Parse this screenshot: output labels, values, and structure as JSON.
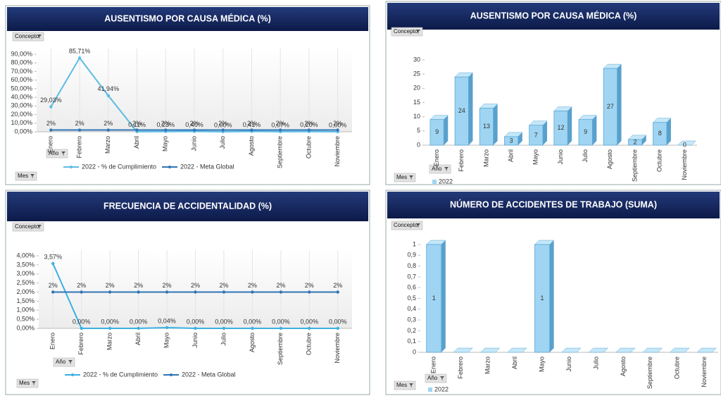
{
  "chart_data": [
    {
      "type": "line",
      "title": "AUSENTISMO POR CAUSA MÉDICA (%)",
      "filters": [
        "Concepto",
        "Año",
        "Mes"
      ],
      "categories": [
        "Enero",
        "Febrero",
        "Marzo",
        "Abril",
        "Mayo",
        "Junio",
        "Julio",
        "Agosto",
        "Septiembre",
        "Octubre",
        "Noviembre"
      ],
      "series": [
        {
          "name": "2022 - % de Cumplimiento",
          "color": "#5bbce4",
          "values": [
            29.03,
            85.71,
            41.94,
            0.11,
            0.23,
            0.4,
            0.0,
            0.41,
            0.07,
            0.2,
            0.0
          ],
          "value_labels": [
            "29,03%",
            "85,71%",
            "41,94%",
            "0,11%",
            "0,23%",
            "0,40%",
            "0,00%",
            "0,41%",
            "0,07%",
            "0,20%",
            "0,00%"
          ]
        },
        {
          "name": "2022 - Meta Global",
          "color": "#2e75b6",
          "values": [
            2,
            2,
            2,
            2,
            2,
            2,
            2,
            2,
            2,
            2,
            2
          ],
          "value_labels": [
            "2%",
            "2%",
            "2%",
            "2%",
            "2%",
            "2%",
            "2%",
            "2%",
            "2%",
            "2%",
            "2%"
          ]
        }
      ],
      "ylim": [
        0,
        90
      ],
      "yticks": [
        {
          "value": 0,
          "label": "0,00%"
        },
        {
          "value": 10,
          "label": "10,00%"
        },
        {
          "value": 20,
          "label": "20,00%"
        },
        {
          "value": 30,
          "label": "30,00%"
        },
        {
          "value": 40,
          "label": "40,00%"
        },
        {
          "value": 50,
          "label": "50,00%"
        },
        {
          "value": 60,
          "label": "60,00%"
        },
        {
          "value": 70,
          "label": "70,00%"
        },
        {
          "value": 80,
          "label": "80,00%"
        },
        {
          "value": 90,
          "label": "90,00%"
        }
      ]
    },
    {
      "type": "bar",
      "title": "AUSENTISMO POR CAUSA MÉDICA (%)",
      "filters": [
        "Concepto",
        "Año",
        "Mes"
      ],
      "categories": [
        "Enero",
        "Febrero",
        "Marzo",
        "Abril",
        "Mayo",
        "Junio",
        "Julio",
        "Agosto",
        "Septiembre",
        "Octubre",
        "Noviembre"
      ],
      "series": [
        {
          "name": "2022",
          "color": "#9fd5f2",
          "values": [
            9,
            24,
            13,
            3,
            7,
            12,
            9,
            27,
            2,
            8,
            0
          ]
        }
      ],
      "ylim": [
        0,
        30
      ],
      "yticks": [
        0,
        5,
        10,
        15,
        20,
        25,
        30
      ]
    },
    {
      "type": "line",
      "title": "FRECUENCIA DE ACCIDENTALIDAD (%)",
      "filters": [
        "Concepto",
        "Año",
        "Mes"
      ],
      "categories": [
        "Enero",
        "Febrero",
        "Marzo",
        "Abril",
        "Mayo",
        "Junio",
        "Julio",
        "Agosto",
        "Septiembre",
        "Octubre",
        "Noviembre"
      ],
      "series": [
        {
          "name": "2022 - % de Cumplimiento",
          "color": "#3cb0e0",
          "values": [
            3.57,
            0,
            0,
            0,
            0.04,
            0,
            0,
            0,
            0,
            0,
            0
          ],
          "value_labels": [
            "3,57%",
            "0,00%",
            "0,00%",
            "0,00%",
            "0,04%",
            "0,00%",
            "0,00%",
            "0,00%",
            "0,00%",
            "0,00%",
            "0,00%"
          ]
        },
        {
          "name": "2022 - Meta Global",
          "color": "#2e75b6",
          "values": [
            2,
            2,
            2,
            2,
            2,
            2,
            2,
            2,
            2,
            2,
            2
          ],
          "value_labels": [
            "2%",
            "2%",
            "2%",
            "2%",
            "2%",
            "2%",
            "2%",
            "2%",
            "2%",
            "2%",
            "2%"
          ]
        }
      ],
      "ylim": [
        0,
        4
      ],
      "yticks": [
        {
          "value": 0,
          "label": "0,00%"
        },
        {
          "value": 0.5,
          "label": "0,50%"
        },
        {
          "value": 1,
          "label": "1,00%"
        },
        {
          "value": 1.5,
          "label": "1,50%"
        },
        {
          "value": 2,
          "label": "2,00%"
        },
        {
          "value": 2.5,
          "label": "2,50%"
        },
        {
          "value": 3,
          "label": "3,00%"
        },
        {
          "value": 3.5,
          "label": "3,50%"
        },
        {
          "value": 4,
          "label": "4,00%"
        }
      ]
    },
    {
      "type": "bar",
      "title": "NÚMERO DE ACCIDENTES DE TRABAJO  (SUMA)",
      "filters": [
        "Concepto",
        "Año",
        "Mes"
      ],
      "categories": [
        "Enero",
        "Febrero",
        "Marzo",
        "Abril",
        "Mayo",
        "Junio",
        "Julio",
        "Agosto",
        "Septiembre",
        "Octubre",
        "Noviembre"
      ],
      "series": [
        {
          "name": "2022",
          "color": "#9fd5f2",
          "values": [
            1,
            0,
            0,
            0,
            1,
            0,
            0,
            0,
            0,
            0,
            0
          ]
        }
      ],
      "ylim": [
        0,
        1
      ],
      "yticks": [
        0,
        {
          "value": 0.1,
          "label": "0,1"
        },
        {
          "value": 0.2,
          "label": "0,2"
        },
        {
          "value": 0.3,
          "label": "0,3"
        },
        {
          "value": 0.4,
          "label": "0,4"
        },
        {
          "value": 0.5,
          "label": "0,5"
        },
        {
          "value": 0.6,
          "label": "0,6"
        },
        {
          "value": 0.7,
          "label": "0,7"
        },
        {
          "value": 0.8,
          "label": "0,8"
        },
        {
          "value": 0.9,
          "label": "0,9"
        },
        1
      ]
    }
  ]
}
